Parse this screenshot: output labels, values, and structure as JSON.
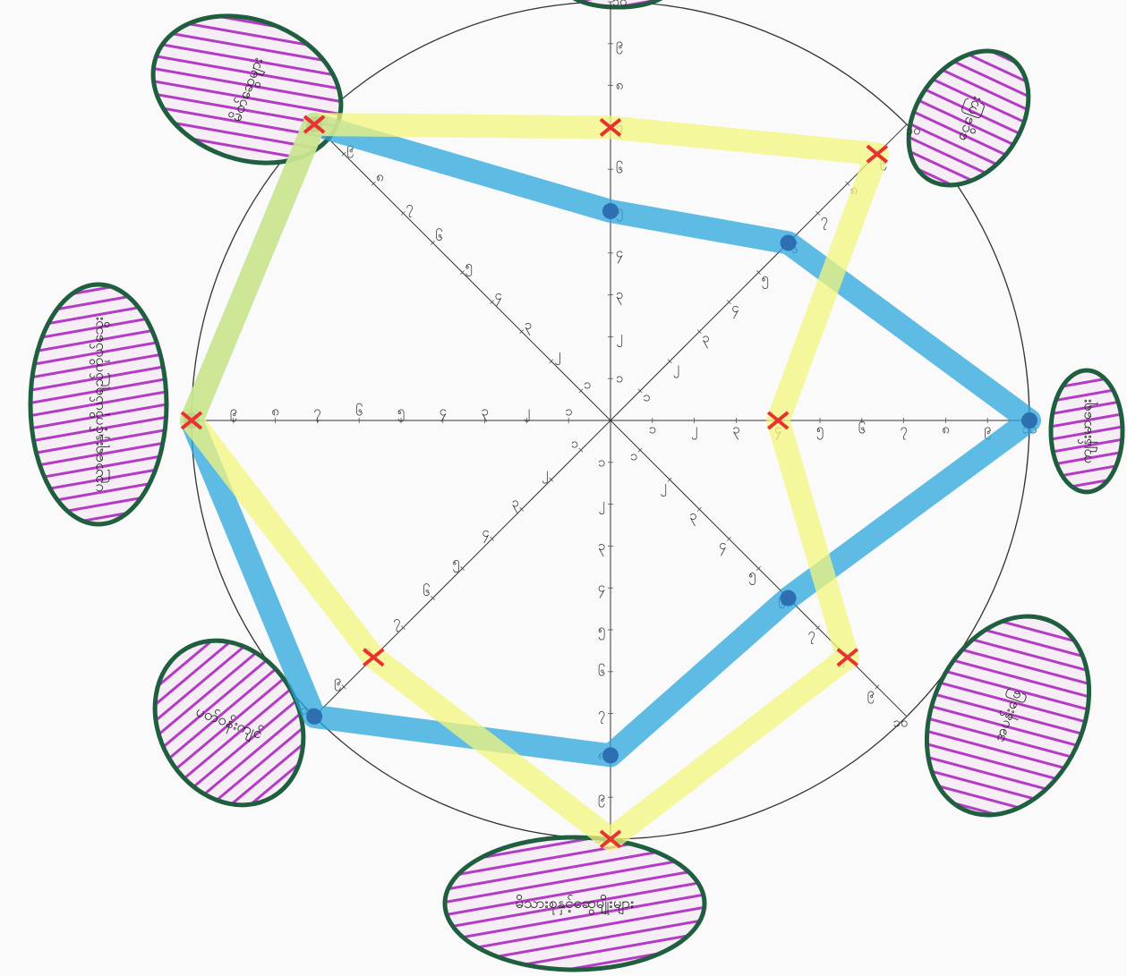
{
  "chart_data": {
    "type": "radar",
    "categories": [
      null,
      "ငွေကြေး",
      "ကျန်းမာရေး",
      "အပန်းဖြေ",
      "မိသားစုနှင့်ဆွေမျိုးများ",
      "ပတ်ဝန်းကျင်",
      "ပညာရေးနှင့်ကိုယ်ရည်ကိုယ်သွေး",
      "မိတ်ဆွေများ"
    ],
    "series": [
      {
        "color": "#2aa6dc",
        "values": [
          5,
          6,
          10,
          6,
          8,
          10,
          10,
          10
        ]
      },
      {
        "color": "#f3f57c",
        "values": [
          7,
          9,
          4,
          8,
          10,
          8,
          10,
          10
        ]
      }
    ],
    "rlim": [
      0,
      10
    ],
    "rticks": [
      {
        "value": 1,
        "label": "၁"
      },
      {
        "value": 2,
        "label": "၂"
      },
      {
        "value": 3,
        "label": "၃"
      },
      {
        "value": 4,
        "label": "၄"
      },
      {
        "value": 5,
        "label": "၅"
      },
      {
        "value": 6,
        "label": "၆"
      },
      {
        "value": 7,
        "label": "၇"
      },
      {
        "value": 8,
        "label": "၈"
      },
      {
        "value": 9,
        "label": "၉"
      },
      {
        "value": 10,
        "label": "၁၀"
      }
    ],
    "marker_color": "#e8322f",
    "label_fill": "#b43cc4",
    "label_border": "#1f5e3e"
  }
}
